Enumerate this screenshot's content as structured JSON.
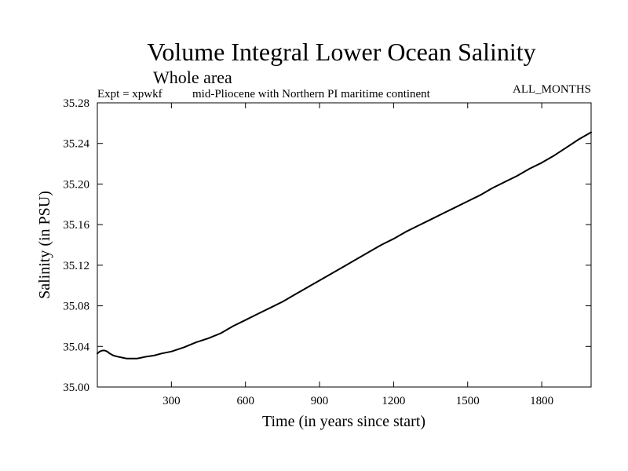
{
  "chart_data": {
    "type": "line",
    "title": "Volume Integral Lower Ocean Salinity",
    "subtitle": "Whole area",
    "header_left": "Expt = xpwkf",
    "header_center": "mid-Pliocene with Northern PI maritime continent",
    "header_right": "ALL_MONTHS",
    "xlabel": "Time (in years since start)",
    "ylabel": "Salinity (in PSU)",
    "xlim": [
      0,
      2000
    ],
    "ylim": [
      35.0,
      35.28
    ],
    "xticks": [
      300,
      600,
      900,
      1200,
      1500,
      1800
    ],
    "yticks": [
      35.0,
      35.04,
      35.08,
      35.12,
      35.16,
      35.2,
      35.24,
      35.28
    ],
    "xtick_labels": [
      "300",
      "600",
      "900",
      "1200",
      "1500",
      "1800"
    ],
    "ytick_labels": [
      "35.00",
      "35.04",
      "35.08",
      "35.12",
      "35.16",
      "35.20",
      "35.24",
      "35.28"
    ],
    "line_color": "#000000",
    "series": [
      {
        "name": "Salinity",
        "x": [
          0,
          10,
          20,
          30,
          40,
          50,
          65,
          80,
          100,
          120,
          140,
          160,
          180,
          200,
          230,
          260,
          300,
          350,
          400,
          450,
          500,
          550,
          600,
          650,
          700,
          750,
          800,
          850,
          900,
          950,
          1000,
          1050,
          1100,
          1150,
          1200,
          1250,
          1300,
          1350,
          1400,
          1450,
          1500,
          1550,
          1600,
          1650,
          1700,
          1750,
          1800,
          1850,
          1900,
          1950,
          2000
        ],
        "y": [
          35.033,
          35.035,
          35.036,
          35.036,
          35.035,
          35.033,
          35.031,
          35.03,
          35.029,
          35.028,
          35.028,
          35.028,
          35.029,
          35.03,
          35.031,
          35.033,
          35.035,
          35.039,
          35.044,
          35.048,
          35.053,
          35.06,
          35.066,
          35.072,
          35.078,
          35.084,
          35.091,
          35.098,
          35.105,
          35.112,
          35.119,
          35.126,
          35.133,
          35.14,
          35.146,
          35.153,
          35.159,
          35.165,
          35.171,
          35.177,
          35.183,
          35.189,
          35.196,
          35.202,
          35.208,
          35.215,
          35.221,
          35.228,
          35.236,
          35.244,
          35.251
        ]
      }
    ]
  }
}
